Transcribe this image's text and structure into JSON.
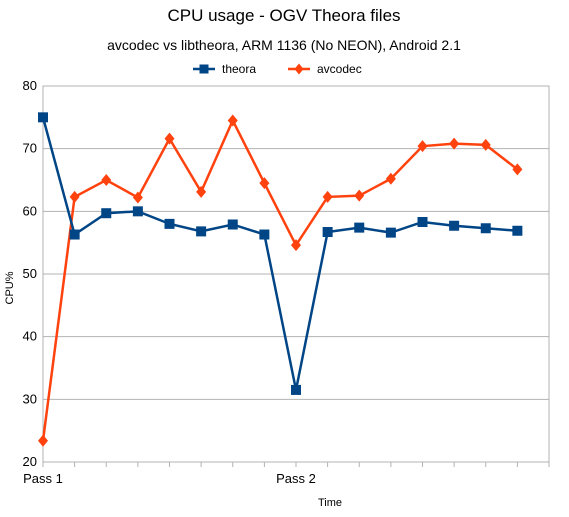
{
  "chart_data": {
    "type": "line",
    "title": "CPU usage - OGV Theora files",
    "subtitle": "avcodec vs libtheora, ARM 1136 (No NEON), Android 2.1",
    "xlabel": "Time",
    "ylabel": "CPU%",
    "ylim": [
      20,
      80
    ],
    "yticks": [
      20,
      30,
      40,
      50,
      60,
      70,
      80
    ],
    "x_tick_labels": [
      {
        "label": "Pass 1",
        "x": 1
      },
      {
        "label": "Pass 2",
        "x": 9
      }
    ],
    "x": [
      1,
      2,
      3,
      4,
      5,
      6,
      7,
      8,
      9,
      10,
      11,
      12,
      13,
      14,
      15,
      16
    ],
    "grid": "horizontal",
    "legend": "top-center",
    "series": [
      {
        "name": "theora",
        "color": "#004586",
        "marker": "square",
        "values": [
          75.0,
          56.3,
          59.7,
          60.0,
          58.0,
          56.8,
          57.9,
          56.3,
          31.5,
          56.7,
          57.4,
          56.6,
          58.3,
          57.7,
          57.3,
          56.9
        ]
      },
      {
        "name": "avcodec",
        "color": "#ff420e",
        "marker": "diamond",
        "values": [
          23.4,
          62.3,
          65.0,
          62.2,
          71.6,
          63.1,
          74.5,
          64.5,
          54.6,
          62.3,
          62.5,
          65.2,
          70.4,
          70.8,
          70.6,
          66.7
        ]
      }
    ]
  }
}
